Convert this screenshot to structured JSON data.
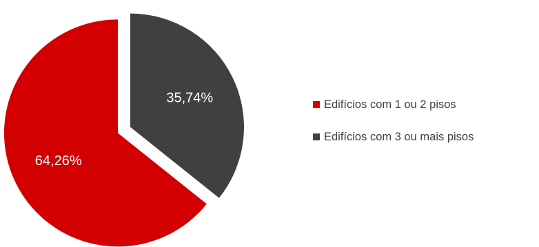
{
  "chart_data": {
    "type": "pie",
    "title": "",
    "categories": [
      "Edifícios com 1 ou 2 pisos",
      "Edifícios com 3 ou mais pisos"
    ],
    "values": [
      64.26,
      35.74
    ],
    "data_labels": [
      "64,26%",
      "35,74%"
    ],
    "colors": [
      "#d20000",
      "#404040"
    ],
    "exploded": true,
    "legend_position": "right"
  }
}
